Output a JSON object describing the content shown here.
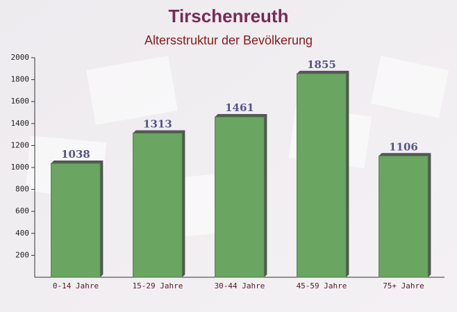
{
  "chart_data": {
    "type": "bar",
    "title": "Tirschenreuth",
    "subtitle": "Altersstruktur der Bevölkerung",
    "categories": [
      "0-14 Jahre",
      "15-29 Jahre",
      "30-44 Jahre",
      "45-59 Jahre",
      "75+ Jahre"
    ],
    "values": [
      1038,
      1313,
      1461,
      1855,
      1106
    ],
    "color": "#6aa562",
    "ylim": [
      0,
      2000
    ],
    "yticks": [
      200,
      400,
      600,
      800,
      1000,
      1200,
      1400,
      1600,
      1800,
      2000
    ],
    "grid": false
  }
}
